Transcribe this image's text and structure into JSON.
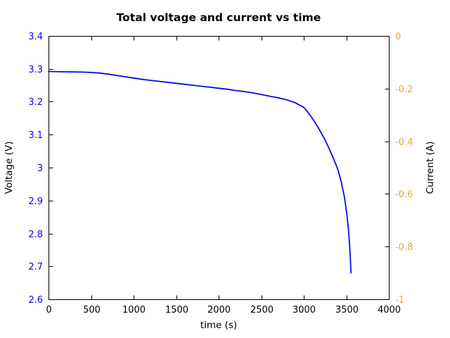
{
  "chart_data": {
    "type": "line",
    "title": "Total voltage and current vs time",
    "xlabel": "time (s)",
    "xlim": [
      0,
      4000
    ],
    "grid": false,
    "legend": "none",
    "x_ticks": {
      "values": [
        0,
        500,
        1000,
        1500,
        2000,
        2500,
        3000,
        3500,
        4000
      ],
      "labels": [
        "0",
        "500",
        "1000",
        "1500",
        "2000",
        "2500",
        "3000",
        "3500",
        "4000"
      ]
    },
    "left_axis": {
      "label": "Voltage (V)",
      "lim": [
        2.6,
        3.4
      ],
      "color": "#0707ee",
      "ticks": {
        "values": [
          2.6,
          2.7,
          2.8,
          2.9,
          3.0,
          3.1,
          3.2,
          3.3,
          3.4
        ],
        "labels": [
          "2.6",
          "2.7",
          "2.8",
          "2.9",
          "3",
          "3.1",
          "3.2",
          "3.3",
          "3.4"
        ]
      }
    },
    "right_axis": {
      "label": "Current (A)",
      "lim": [
        -1,
        0
      ],
      "color": "#e8a33d",
      "ticks": {
        "values": [
          0,
          -0.2,
          -0.4,
          -0.6,
          -0.8,
          -1
        ],
        "labels": [
          "0",
          "-0.2",
          "-0.4",
          "-0.6",
          "-0.8",
          "-1"
        ]
      }
    },
    "series": [
      {
        "name": "Total voltage",
        "axis": "left",
        "color": "#0707ee",
        "points": [
          [
            0,
            3.292
          ],
          [
            200,
            3.291
          ],
          [
            400,
            3.29
          ],
          [
            500,
            3.289
          ],
          [
            600,
            3.287
          ],
          [
            700,
            3.284
          ],
          [
            800,
            3.28
          ],
          [
            900,
            3.276
          ],
          [
            1000,
            3.272
          ],
          [
            1100,
            3.268
          ],
          [
            1200,
            3.265
          ],
          [
            1300,
            3.262
          ],
          [
            1400,
            3.259
          ],
          [
            1500,
            3.256
          ],
          [
            1600,
            3.253
          ],
          [
            1700,
            3.25
          ],
          [
            1800,
            3.247
          ],
          [
            1900,
            3.244
          ],
          [
            2000,
            3.241
          ],
          [
            2100,
            3.238
          ],
          [
            2200,
            3.234
          ],
          [
            2300,
            3.231
          ],
          [
            2400,
            3.227
          ],
          [
            2500,
            3.222
          ],
          [
            2600,
            3.217
          ],
          [
            2700,
            3.212
          ],
          [
            2800,
            3.206
          ],
          [
            2900,
            3.197
          ],
          [
            3000,
            3.183
          ],
          [
            3050,
            3.168
          ],
          [
            3100,
            3.15
          ],
          [
            3150,
            3.13
          ],
          [
            3200,
            3.108
          ],
          [
            3250,
            3.084
          ],
          [
            3300,
            3.057
          ],
          [
            3350,
            3.027
          ],
          [
            3400,
            2.995
          ],
          [
            3440,
            2.958
          ],
          [
            3480,
            2.908
          ],
          [
            3510,
            2.852
          ],
          [
            3530,
            2.8
          ],
          [
            3545,
            2.74
          ],
          [
            3555,
            2.68
          ]
        ]
      }
    ]
  }
}
